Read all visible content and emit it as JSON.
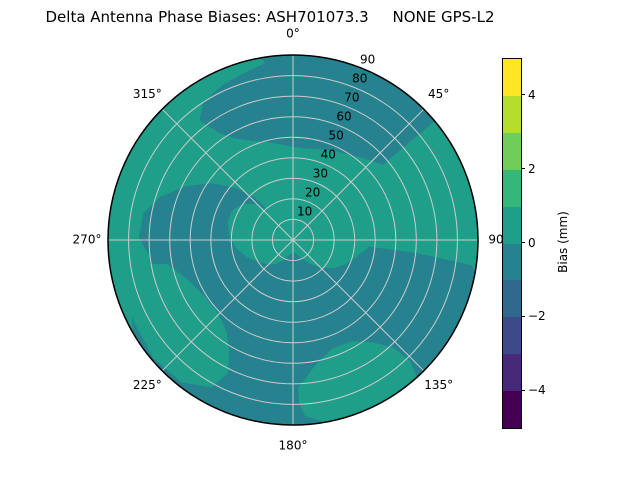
{
  "title": "Delta Antenna Phase Biases: ASH701073.3     NONE GPS-L2",
  "chart_data": {
    "type": "heatmap",
    "subtype": "polar_filled_contour",
    "title": "Delta Antenna Phase Biases: ASH701073.3     NONE GPS-L2",
    "orientation": "0° at top, azimuth increases clockwise",
    "angular_ticks": [
      {
        "value_deg": 0,
        "label": "0°"
      },
      {
        "value_deg": 45,
        "label": "45°"
      },
      {
        "value_deg": 90,
        "label": "90°"
      },
      {
        "value_deg": 135,
        "label": "135°"
      },
      {
        "value_deg": 180,
        "label": "180°"
      },
      {
        "value_deg": 225,
        "label": "225°"
      },
      {
        "value_deg": 270,
        "label": "270°"
      },
      {
        "value_deg": 315,
        "label": "315°"
      }
    ],
    "radial_ticks": [
      10,
      20,
      30,
      40,
      50,
      60,
      70,
      80,
      90
    ],
    "radial_axis_max": 90,
    "radial_label_angle_deg": 22.5,
    "grid": {
      "on": true,
      "color": "#cccccc",
      "boundary_color": "#000000"
    },
    "colorbar": {
      "label": "Bias (mm)",
      "position": "right",
      "range": [
        -5,
        5
      ],
      "n_levels": 10,
      "tick_values": [
        4,
        2,
        0,
        -2,
        -4
      ],
      "tick_labels": [
        "4",
        "2",
        "0",
        "−2",
        "−4"
      ],
      "level_colors_top_to_bottom": [
        "#fde725",
        "#b5de2b",
        "#6ece58",
        "#35b779",
        "#1f9e89",
        "#26828e",
        "#31688e",
        "#3e4989",
        "#482878",
        "#440154"
      ]
    },
    "observed_bias_levels": [
      {
        "range_mm": [
          0,
          1
        ],
        "color": "#1f9e89",
        "note": "base fill over most of the dish"
      },
      {
        "range_mm": [
          -1,
          0
        ],
        "color": "#26828e",
        "note": "darker band near 0° beyond ~50° radius, center/south-west blob, large south-east region"
      }
    ],
    "regions": {
      "base_color": "#1f9e89",
      "dark_color": "#26828e",
      "dark_polygons": [
        [
          [
            -38,
            74
          ],
          [
            -33,
            80
          ],
          [
            -25,
            84
          ],
          [
            -15,
            87
          ],
          [
            -9,
            90
          ],
          [
            0,
            90
          ],
          [
            10,
            90
          ],
          [
            20,
            90
          ],
          [
            30,
            90
          ],
          [
            40,
            90
          ],
          [
            50,
            90
          ],
          [
            50,
            57
          ],
          [
            42,
            53
          ],
          [
            34,
            50
          ],
          [
            26,
            48
          ],
          [
            16,
            46
          ],
          [
            6,
            45
          ],
          [
            -4,
            46
          ],
          [
            -14,
            49
          ],
          [
            -22,
            52
          ],
          [
            -30,
            57
          ],
          [
            -35,
            64
          ]
        ],
        [
          [
            95,
            37
          ],
          [
            105,
            32
          ],
          [
            115,
            28
          ],
          [
            125,
            24
          ],
          [
            135,
            19
          ],
          [
            145,
            14
          ],
          [
            155,
            10
          ],
          [
            165,
            7
          ],
          [
            178,
            6
          ],
          [
            190,
            7
          ],
          [
            202,
            10
          ],
          [
            214,
            14
          ],
          [
            226,
            17
          ],
          [
            238,
            20
          ],
          [
            250,
            24
          ],
          [
            262,
            28
          ],
          [
            274,
            31
          ],
          [
            286,
            33
          ],
          [
            296,
            33
          ],
          [
            306,
            30
          ],
          [
            314,
            25
          ],
          [
            320,
            18
          ],
          [
            318,
            28
          ],
          [
            312,
            38
          ],
          [
            305,
            48
          ],
          [
            297,
            58
          ],
          [
            288,
            68
          ],
          [
            280,
            74
          ],
          [
            271,
            75
          ],
          [
            263,
            70
          ],
          [
            256,
            73
          ],
          [
            250,
            80
          ],
          [
            244,
            87
          ],
          [
            240,
            90
          ],
          [
            230,
            90
          ],
          [
            220,
            90
          ],
          [
            210,
            90
          ],
          [
            200,
            90
          ],
          [
            190,
            90
          ],
          [
            180,
            90
          ],
          [
            170,
            90
          ],
          [
            160,
            90
          ],
          [
            150,
            90
          ],
          [
            140,
            90
          ],
          [
            130,
            90
          ],
          [
            120,
            90
          ],
          [
            110,
            90
          ],
          [
            100,
            90
          ],
          [
            98,
            88
          ],
          [
            96,
            60
          ]
        ]
      ],
      "light_overlay_polygons": [
        [
          [
            210,
            62
          ],
          [
            206,
            72
          ],
          [
            209,
            82
          ],
          [
            218,
            88
          ],
          [
            230,
            89
          ],
          [
            243,
            87
          ],
          [
            254,
            82
          ],
          [
            261,
            73
          ],
          [
            259,
            62
          ],
          [
            250,
            55
          ],
          [
            238,
            51
          ],
          [
            226,
            51
          ],
          [
            216,
            55
          ]
        ],
        [
          [
            178,
            72
          ],
          [
            170,
            62
          ],
          [
            160,
            56
          ],
          [
            150,
            57
          ],
          [
            142,
            63
          ],
          [
            137,
            72
          ],
          [
            136,
            82
          ],
          [
            138,
            90
          ],
          [
            150,
            90
          ],
          [
            160,
            90
          ],
          [
            170,
            90
          ],
          [
            176,
            86
          ],
          [
            178,
            79
          ]
        ],
        [
          [
            262,
            73
          ],
          [
            258,
            79
          ],
          [
            256,
            86
          ],
          [
            258,
            90
          ],
          [
            270,
            90
          ],
          [
            280,
            90
          ],
          [
            290,
            90
          ],
          [
            300,
            90
          ],
          [
            310,
            90
          ],
          [
            320,
            90
          ],
          [
            330,
            90
          ],
          [
            340,
            90
          ],
          [
            350,
            90
          ],
          [
            351,
            87
          ],
          [
            345,
            85
          ],
          [
            336,
            83
          ],
          [
            327,
            80
          ],
          [
            318,
            77
          ],
          [
            308,
            68
          ],
          [
            300,
            66
          ],
          [
            290,
            70
          ],
          [
            280,
            77
          ],
          [
            271,
            77
          ]
        ]
      ]
    }
  },
  "colorbar_label": "Bias (mm)"
}
